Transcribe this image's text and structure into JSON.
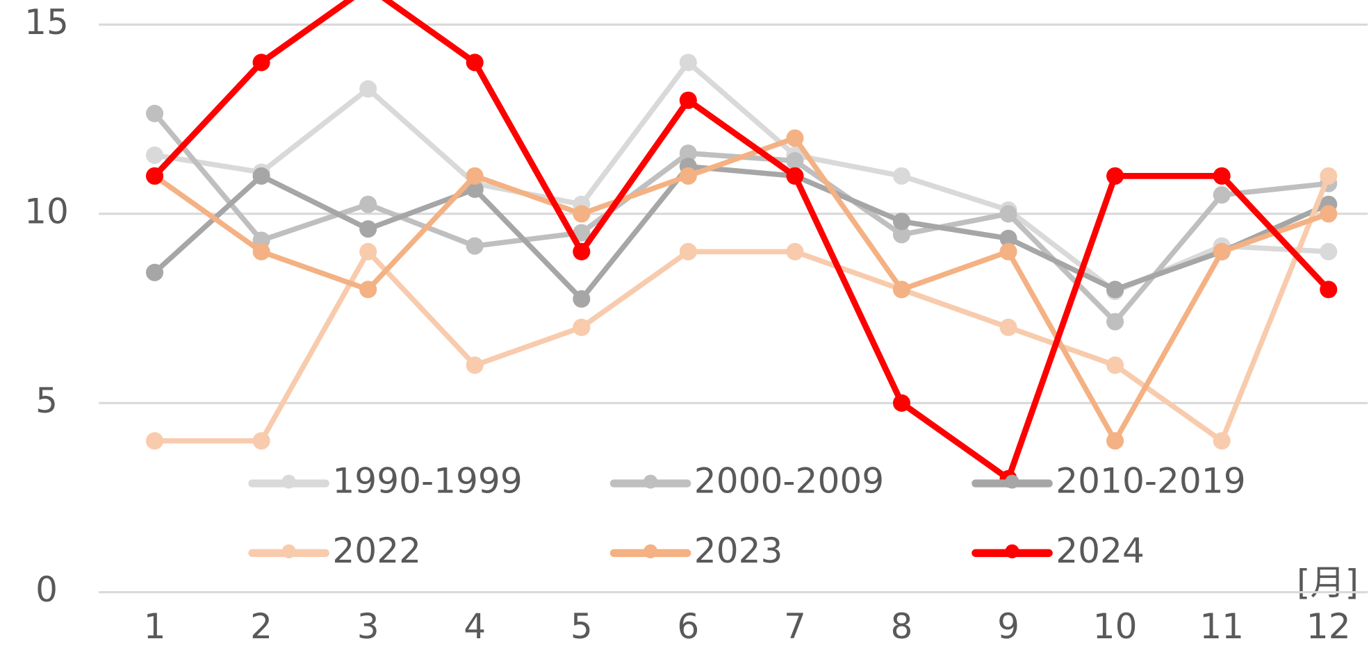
{
  "chart_data": {
    "type": "line",
    "x_unit_label": "[月]",
    "categories": [
      "1",
      "2",
      "3",
      "4",
      "5",
      "6",
      "7",
      "8",
      "9",
      "10",
      "11",
      "12"
    ],
    "series": [
      {
        "name": "1990-1999",
        "color": "#d9d9d9",
        "values": [
          11.55,
          11.1,
          13.3,
          10.8,
          10.25,
          14,
          11.55,
          11,
          10.1,
          7.95,
          9.15,
          9
        ]
      },
      {
        "name": "2000-2009",
        "color": "#bfbfbf",
        "values": [
          12.65,
          9.3,
          10.25,
          9.15,
          9.5,
          11.6,
          11.4,
          9.45,
          10,
          7.15,
          10.5,
          10.8
        ]
      },
      {
        "name": "2010-2019",
        "color": "#a6a6a6",
        "values": [
          8.45,
          11,
          9.6,
          10.65,
          7.75,
          11.25,
          11,
          9.8,
          9.35,
          8,
          9,
          10.25
        ]
      },
      {
        "name": "2022",
        "color": "#f8cbad",
        "values": [
          4,
          4,
          9,
          6,
          7,
          9,
          9,
          8,
          7,
          6,
          4,
          11
        ]
      },
      {
        "name": "2023",
        "color": "#f4b183",
        "values": [
          11,
          9,
          8,
          11,
          10,
          11,
          12,
          8,
          9,
          4,
          9,
          10
        ]
      },
      {
        "name": "2024",
        "color": "#ff0000",
        "values": [
          11,
          14,
          16,
          14,
          9,
          13,
          11,
          5,
          3,
          11,
          11,
          8
        ]
      }
    ],
    "ylim": [
      0,
      15.65
    ],
    "yticks": [
      0,
      5,
      10,
      15
    ],
    "grid": true
  }
}
